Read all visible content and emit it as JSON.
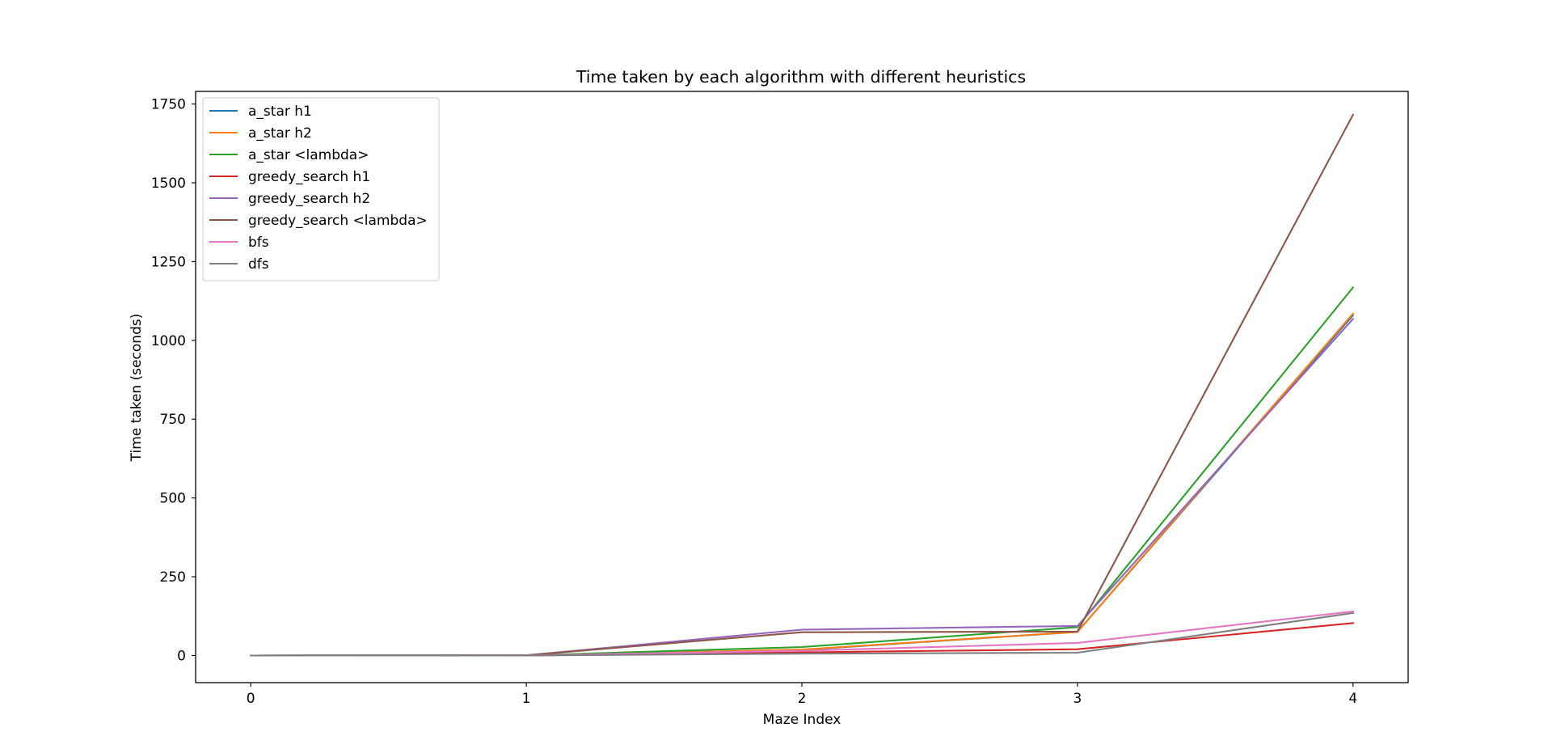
{
  "chart_data": {
    "type": "line",
    "title": "Time taken by each algorithm with different heuristics",
    "xlabel": "Maze Index",
    "ylabel": "Time taken (seconds)",
    "x": [
      0,
      1,
      2,
      3,
      4
    ],
    "xticks": [
      "0",
      "1",
      "2",
      "3",
      "4"
    ],
    "yticks": [
      "0",
      "250",
      "500",
      "750",
      "1000",
      "1250",
      "1500",
      "1750"
    ],
    "xlim": [
      -0.2,
      4.2
    ],
    "ylim": [
      -86,
      1790
    ],
    "grid": false,
    "legend_position": "upper left",
    "series": [
      {
        "name": "a_star h1",
        "color": "#1f77b4",
        "values": [
          0.1,
          0.5,
          18,
          75,
          1080
        ]
      },
      {
        "name": "a_star h2",
        "color": "#ff7f0e",
        "values": [
          0.1,
          0.5,
          19,
          75,
          1085
        ]
      },
      {
        "name": "a_star <lambda>",
        "color": "#2ca02c",
        "values": [
          0.1,
          0.5,
          27,
          90,
          1168
        ]
      },
      {
        "name": "greedy_search h1",
        "color": "#d62728",
        "values": [
          0.1,
          0.3,
          10,
          20,
          103
        ]
      },
      {
        "name": "greedy_search h2",
        "color": "#9467bd",
        "values": [
          0.1,
          0.8,
          82,
          94,
          1068
        ]
      },
      {
        "name": "greedy_search <lambda>",
        "color": "#8c564b",
        "values": [
          0.1,
          0.8,
          74,
          76,
          1716
        ]
      },
      {
        "name": "bfs",
        "color": "#e377c2",
        "values": [
          0.1,
          0.4,
          15,
          40,
          140
        ]
      },
      {
        "name": "dfs",
        "color": "#7f7f7f",
        "values": [
          0.1,
          0.3,
          6,
          9,
          135
        ]
      }
    ]
  }
}
